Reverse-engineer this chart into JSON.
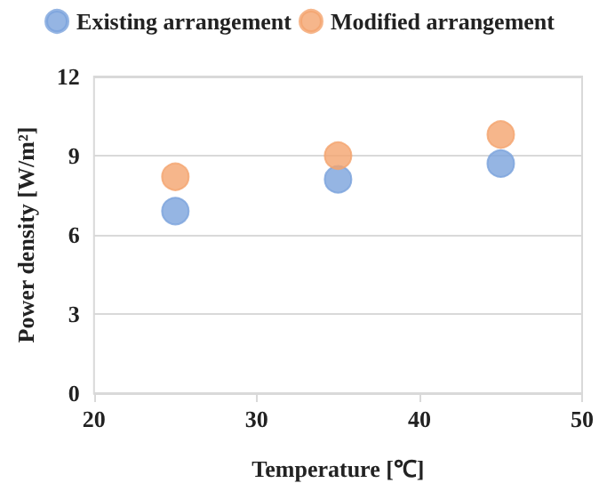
{
  "chart_data": {
    "type": "scatter",
    "xlabel": "Temperature [℃]",
    "ylabel": "Power density [W/m²]",
    "x": [
      25,
      35,
      45
    ],
    "series": [
      {
        "name": "Existing arrangement",
        "color": "#7ba3dc",
        "values": [
          6.9,
          8.1,
          8.7
        ]
      },
      {
        "name": "Modified arrangement",
        "color": "#f4a46e",
        "values": [
          8.2,
          9.0,
          9.8
        ]
      }
    ],
    "xlim": [
      20,
      50
    ],
    "xticks": [
      20,
      30,
      40,
      50
    ],
    "ylim": [
      0,
      12
    ],
    "yticks": [
      0,
      3,
      6,
      9,
      12
    ],
    "grid": "y",
    "legend": "top",
    "marker": "circle"
  }
}
